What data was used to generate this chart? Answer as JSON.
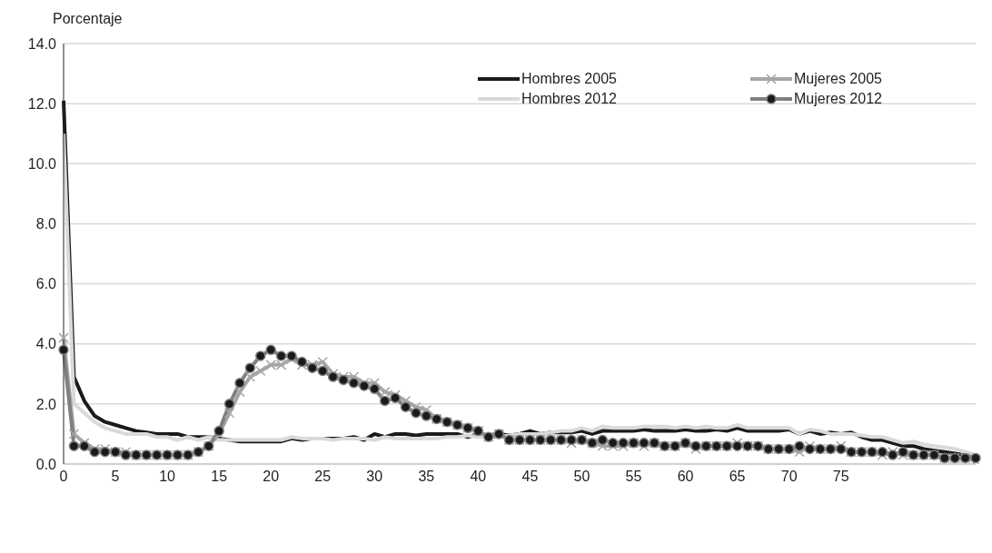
{
  "chart_data": {
    "type": "line",
    "ylabel": "Porcentaje",
    "categories": [
      "0",
      null,
      null,
      null,
      null,
      "5",
      null,
      null,
      null,
      null,
      "10",
      null,
      null,
      null,
      null,
      "15",
      null,
      null,
      null,
      null,
      "20",
      null,
      null,
      null,
      null,
      "25",
      null,
      null,
      null,
      null,
      "30",
      null,
      null,
      null,
      null,
      "35",
      null,
      null,
      null,
      null,
      "40",
      null,
      null,
      null,
      null,
      "45",
      null,
      null,
      null,
      null,
      "50",
      null,
      null,
      null,
      null,
      "55",
      null,
      null,
      null,
      null,
      "60",
      null,
      null,
      null,
      null,
      "65",
      null,
      null,
      null,
      null,
      "70",
      null,
      null,
      null,
      null,
      "75",
      null,
      null,
      null,
      null,
      null,
      null,
      null,
      null,
      null,
      null,
      null,
      null,
      null
    ],
    "series": [
      {
        "name": "Hombres 2005",
        "color": "#1a1a1a",
        "marker": "none",
        "values": [
          12.1,
          2.9,
          2.1,
          1.6,
          1.4,
          1.3,
          1.2,
          1.1,
          1.05,
          1.0,
          1.0,
          1.0,
          0.9,
          0.9,
          0.9,
          0.85,
          0.8,
          0.75,
          0.75,
          0.75,
          0.75,
          0.75,
          0.85,
          0.8,
          0.85,
          0.85,
          0.85,
          0.85,
          0.9,
          0.8,
          1.0,
          0.9,
          1.0,
          1.0,
          0.95,
          1.0,
          1.0,
          1.0,
          1.0,
          0.9,
          1.0,
          0.95,
          1.0,
          0.95,
          1.0,
          1.1,
          1.0,
          1.05,
          1.05,
          1.05,
          1.1,
          1.0,
          1.1,
          1.1,
          1.1,
          1.1,
          1.15,
          1.1,
          1.1,
          1.1,
          1.15,
          1.1,
          1.1,
          1.15,
          1.1,
          1.2,
          1.1,
          1.1,
          1.1,
          1.1,
          1.15,
          1.0,
          1.1,
          1.0,
          1.05,
          1.0,
          1.05,
          0.9,
          0.8,
          0.8,
          0.7,
          0.6,
          0.6,
          0.5,
          0.45,
          0.4,
          0.35,
          0.3,
          0.2
        ]
      },
      {
        "name": "Hombres 2012",
        "color": "#d9d9d9",
        "marker": "none",
        "values": [
          11.0,
          2.0,
          1.7,
          1.4,
          1.2,
          1.1,
          1.0,
          1.0,
          1.0,
          0.9,
          0.9,
          0.8,
          0.9,
          0.8,
          0.9,
          0.8,
          0.8,
          0.8,
          0.8,
          0.8,
          0.8,
          0.8,
          0.9,
          0.85,
          0.85,
          0.85,
          0.8,
          0.85,
          0.85,
          0.85,
          0.8,
          0.9,
          0.85,
          0.85,
          0.85,
          0.85,
          0.85,
          0.9,
          0.9,
          0.95,
          0.9,
          0.9,
          0.9,
          0.95,
          1.0,
          1.0,
          1.0,
          1.05,
          1.1,
          1.1,
          1.2,
          1.1,
          1.25,
          1.2,
          1.2,
          1.2,
          1.25,
          1.25,
          1.25,
          1.2,
          1.25,
          1.2,
          1.25,
          1.2,
          1.2,
          1.3,
          1.2,
          1.2,
          1.2,
          1.2,
          1.2,
          1.0,
          1.15,
          1.1,
          1.0,
          1.0,
          1.0,
          0.95,
          0.9,
          0.9,
          0.8,
          0.7,
          0.75,
          0.65,
          0.6,
          0.55,
          0.5,
          0.4,
          0.3
        ]
      },
      {
        "name": "Mujeres 2005",
        "color": "#a6a6a6",
        "marker": "cross",
        "values": [
          4.2,
          1.0,
          0.7,
          0.5,
          0.5,
          0.4,
          0.4,
          0.3,
          0.3,
          0.3,
          0.3,
          0.3,
          0.3,
          0.4,
          0.6,
          1.0,
          1.7,
          2.4,
          2.9,
          3.1,
          3.3,
          3.3,
          3.5,
          3.3,
          3.3,
          3.4,
          3.0,
          2.9,
          2.9,
          2.7,
          2.7,
          2.4,
          2.3,
          2.1,
          1.9,
          1.8,
          1.5,
          1.4,
          1.3,
          1.2,
          1.1,
          0.9,
          1.0,
          0.8,
          0.8,
          0.8,
          0.8,
          0.8,
          0.8,
          0.7,
          0.8,
          0.7,
          0.6,
          0.6,
          0.6,
          0.7,
          0.6,
          0.7,
          0.6,
          0.6,
          0.7,
          0.5,
          0.6,
          0.6,
          0.6,
          0.7,
          0.6,
          0.6,
          0.5,
          0.5,
          0.5,
          0.4,
          0.6,
          0.5,
          0.5,
          0.6,
          0.4,
          0.4,
          0.4,
          0.3,
          0.4,
          0.3,
          0.3,
          0.3,
          0.3,
          0.2,
          0.2,
          0.2,
          0.1
        ]
      },
      {
        "name": "Mujeres 2012",
        "color": "#808080",
        "marker": "circle",
        "values": [
          3.8,
          0.6,
          0.6,
          0.4,
          0.4,
          0.4,
          0.3,
          0.3,
          0.3,
          0.3,
          0.3,
          0.3,
          0.3,
          0.4,
          0.6,
          1.1,
          2.0,
          2.7,
          3.2,
          3.6,
          3.8,
          3.6,
          3.6,
          3.4,
          3.2,
          3.1,
          2.9,
          2.8,
          2.7,
          2.6,
          2.5,
          2.1,
          2.2,
          1.9,
          1.7,
          1.6,
          1.5,
          1.4,
          1.3,
          1.2,
          1.1,
          0.9,
          1.0,
          0.8,
          0.8,
          0.8,
          0.8,
          0.8,
          0.8,
          0.8,
          0.8,
          0.7,
          0.8,
          0.7,
          0.7,
          0.7,
          0.7,
          0.7,
          0.6,
          0.6,
          0.7,
          0.6,
          0.6,
          0.6,
          0.6,
          0.6,
          0.6,
          0.6,
          0.5,
          0.5,
          0.5,
          0.6,
          0.5,
          0.5,
          0.5,
          0.5,
          0.4,
          0.4,
          0.4,
          0.4,
          0.3,
          0.4,
          0.3,
          0.3,
          0.3,
          0.2,
          0.2,
          0.2,
          0.2
        ]
      }
    ],
    "ylim": [
      0,
      14
    ],
    "yticks": [
      {
        "value": 0,
        "label": "0.0"
      },
      {
        "value": 2,
        "label": "2.0"
      },
      {
        "value": 4,
        "label": "4.0"
      },
      {
        "value": 6,
        "label": "6.0"
      },
      {
        "value": 8,
        "label": "8.0"
      },
      {
        "value": 10,
        "label": "10.0"
      },
      {
        "value": 12,
        "label": "12.0"
      },
      {
        "value": 14,
        "label": "14.0"
      }
    ],
    "grid": "y",
    "legend": "top right",
    "line_style": "solid"
  }
}
